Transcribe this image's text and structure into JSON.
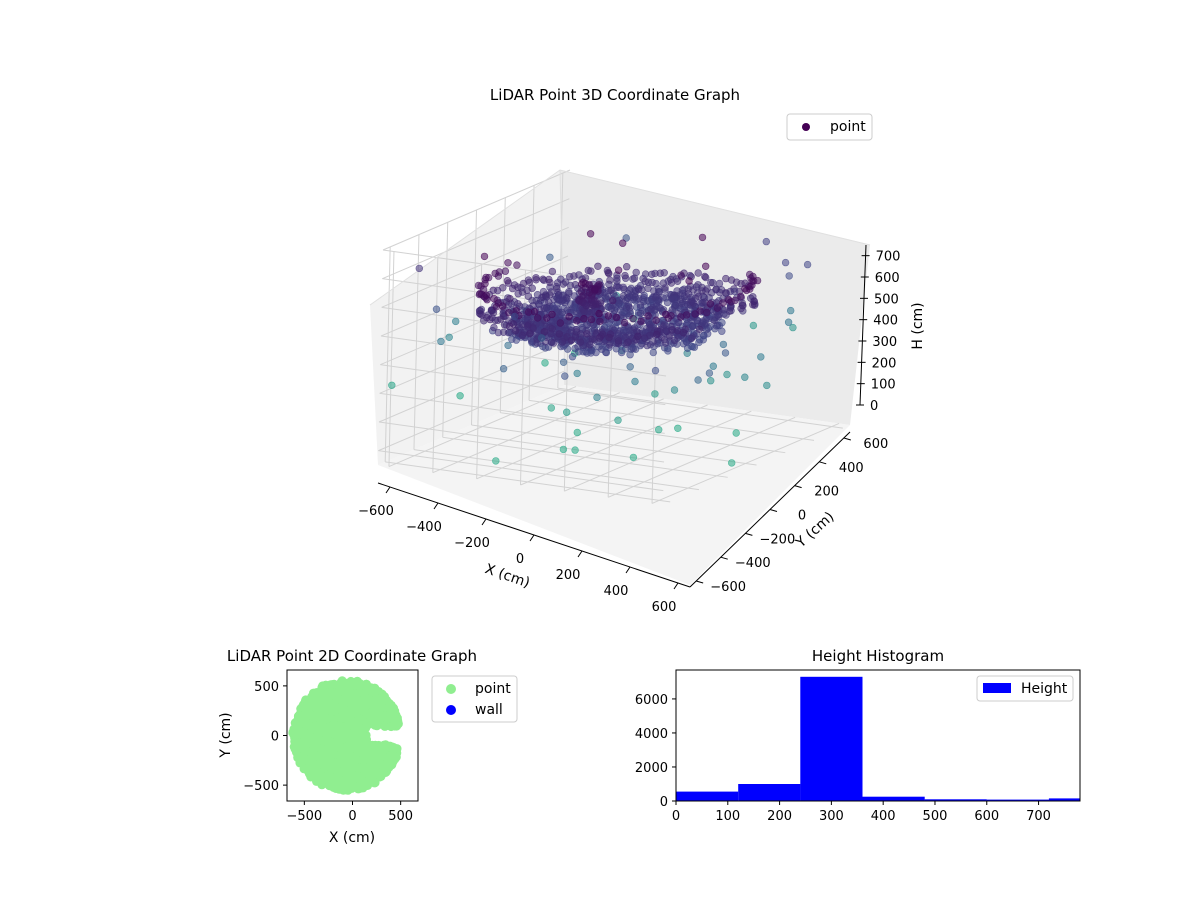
{
  "chart_data": [
    {
      "type": "scatter",
      "subtype": "3d-scatter",
      "title": "LiDAR Point 3D Coordinate Graph",
      "xlabel": "X (cm)",
      "ylabel": "Y (cm)",
      "zlabel": "H (cm)",
      "legend": {
        "position": "top-right",
        "entries": [
          "point"
        ]
      },
      "x_ticks": [
        "−600",
        "−400",
        "−200",
        "0",
        "200",
        "400",
        "600"
      ],
      "y_ticks": [
        "−600",
        "−400",
        "−200",
        "0",
        "200",
        "400",
        "600"
      ],
      "z_ticks": [
        "0",
        "100",
        "200",
        "300",
        "400",
        "500",
        "600",
        "700"
      ],
      "xlim": [
        -650,
        650
      ],
      "ylim": [
        -650,
        650
      ],
      "zlim": [
        750,
        0
      ],
      "z_inverted": true,
      "colormap": "viridis",
      "colors": {
        "marker": "#440154"
      },
      "grid": true
    },
    {
      "type": "scatter",
      "title": "LiDAR Point 2D Coordinate Graph",
      "xlabel": "X (cm)",
      "ylabel": "Y (cm)",
      "x_ticks": [
        "−500",
        "0",
        "500"
      ],
      "y_ticks": [
        "−500",
        "0",
        "500"
      ],
      "xlim": [
        -680,
        680
      ],
      "ylim": [
        -660,
        660
      ],
      "legend": {
        "position": "outside-right",
        "entries": [
          "point",
          "wall"
        ]
      },
      "series": [
        {
          "name": "point",
          "color": "#90ee90"
        },
        {
          "name": "wall",
          "color": "#0000ff"
        }
      ],
      "grid": false
    },
    {
      "type": "bar",
      "subtype": "histogram",
      "title": "Height Histogram",
      "x_ticks": [
        "0",
        "100",
        "200",
        "300",
        "400",
        "500",
        "600",
        "700"
      ],
      "y_ticks": [
        "0",
        "2000",
        "4000",
        "6000"
      ],
      "xlim": [
        0,
        780
      ],
      "ylim": [
        0,
        7700
      ],
      "bins": [
        {
          "from": 0,
          "to": 120,
          "count": 550
        },
        {
          "from": 120,
          "to": 240,
          "count": 1000
        },
        {
          "from": 240,
          "to": 360,
          "count": 7300
        },
        {
          "from": 360,
          "to": 480,
          "count": 250
        },
        {
          "from": 480,
          "to": 600,
          "count": 100
        },
        {
          "from": 600,
          "to": 720,
          "count": 80
        },
        {
          "from": 720,
          "to": 840,
          "count": 150
        }
      ],
      "legend": {
        "position": "top-right",
        "entries": [
          "Height"
        ]
      },
      "colors": {
        "bar": "#0000ff"
      },
      "grid": false
    }
  ]
}
